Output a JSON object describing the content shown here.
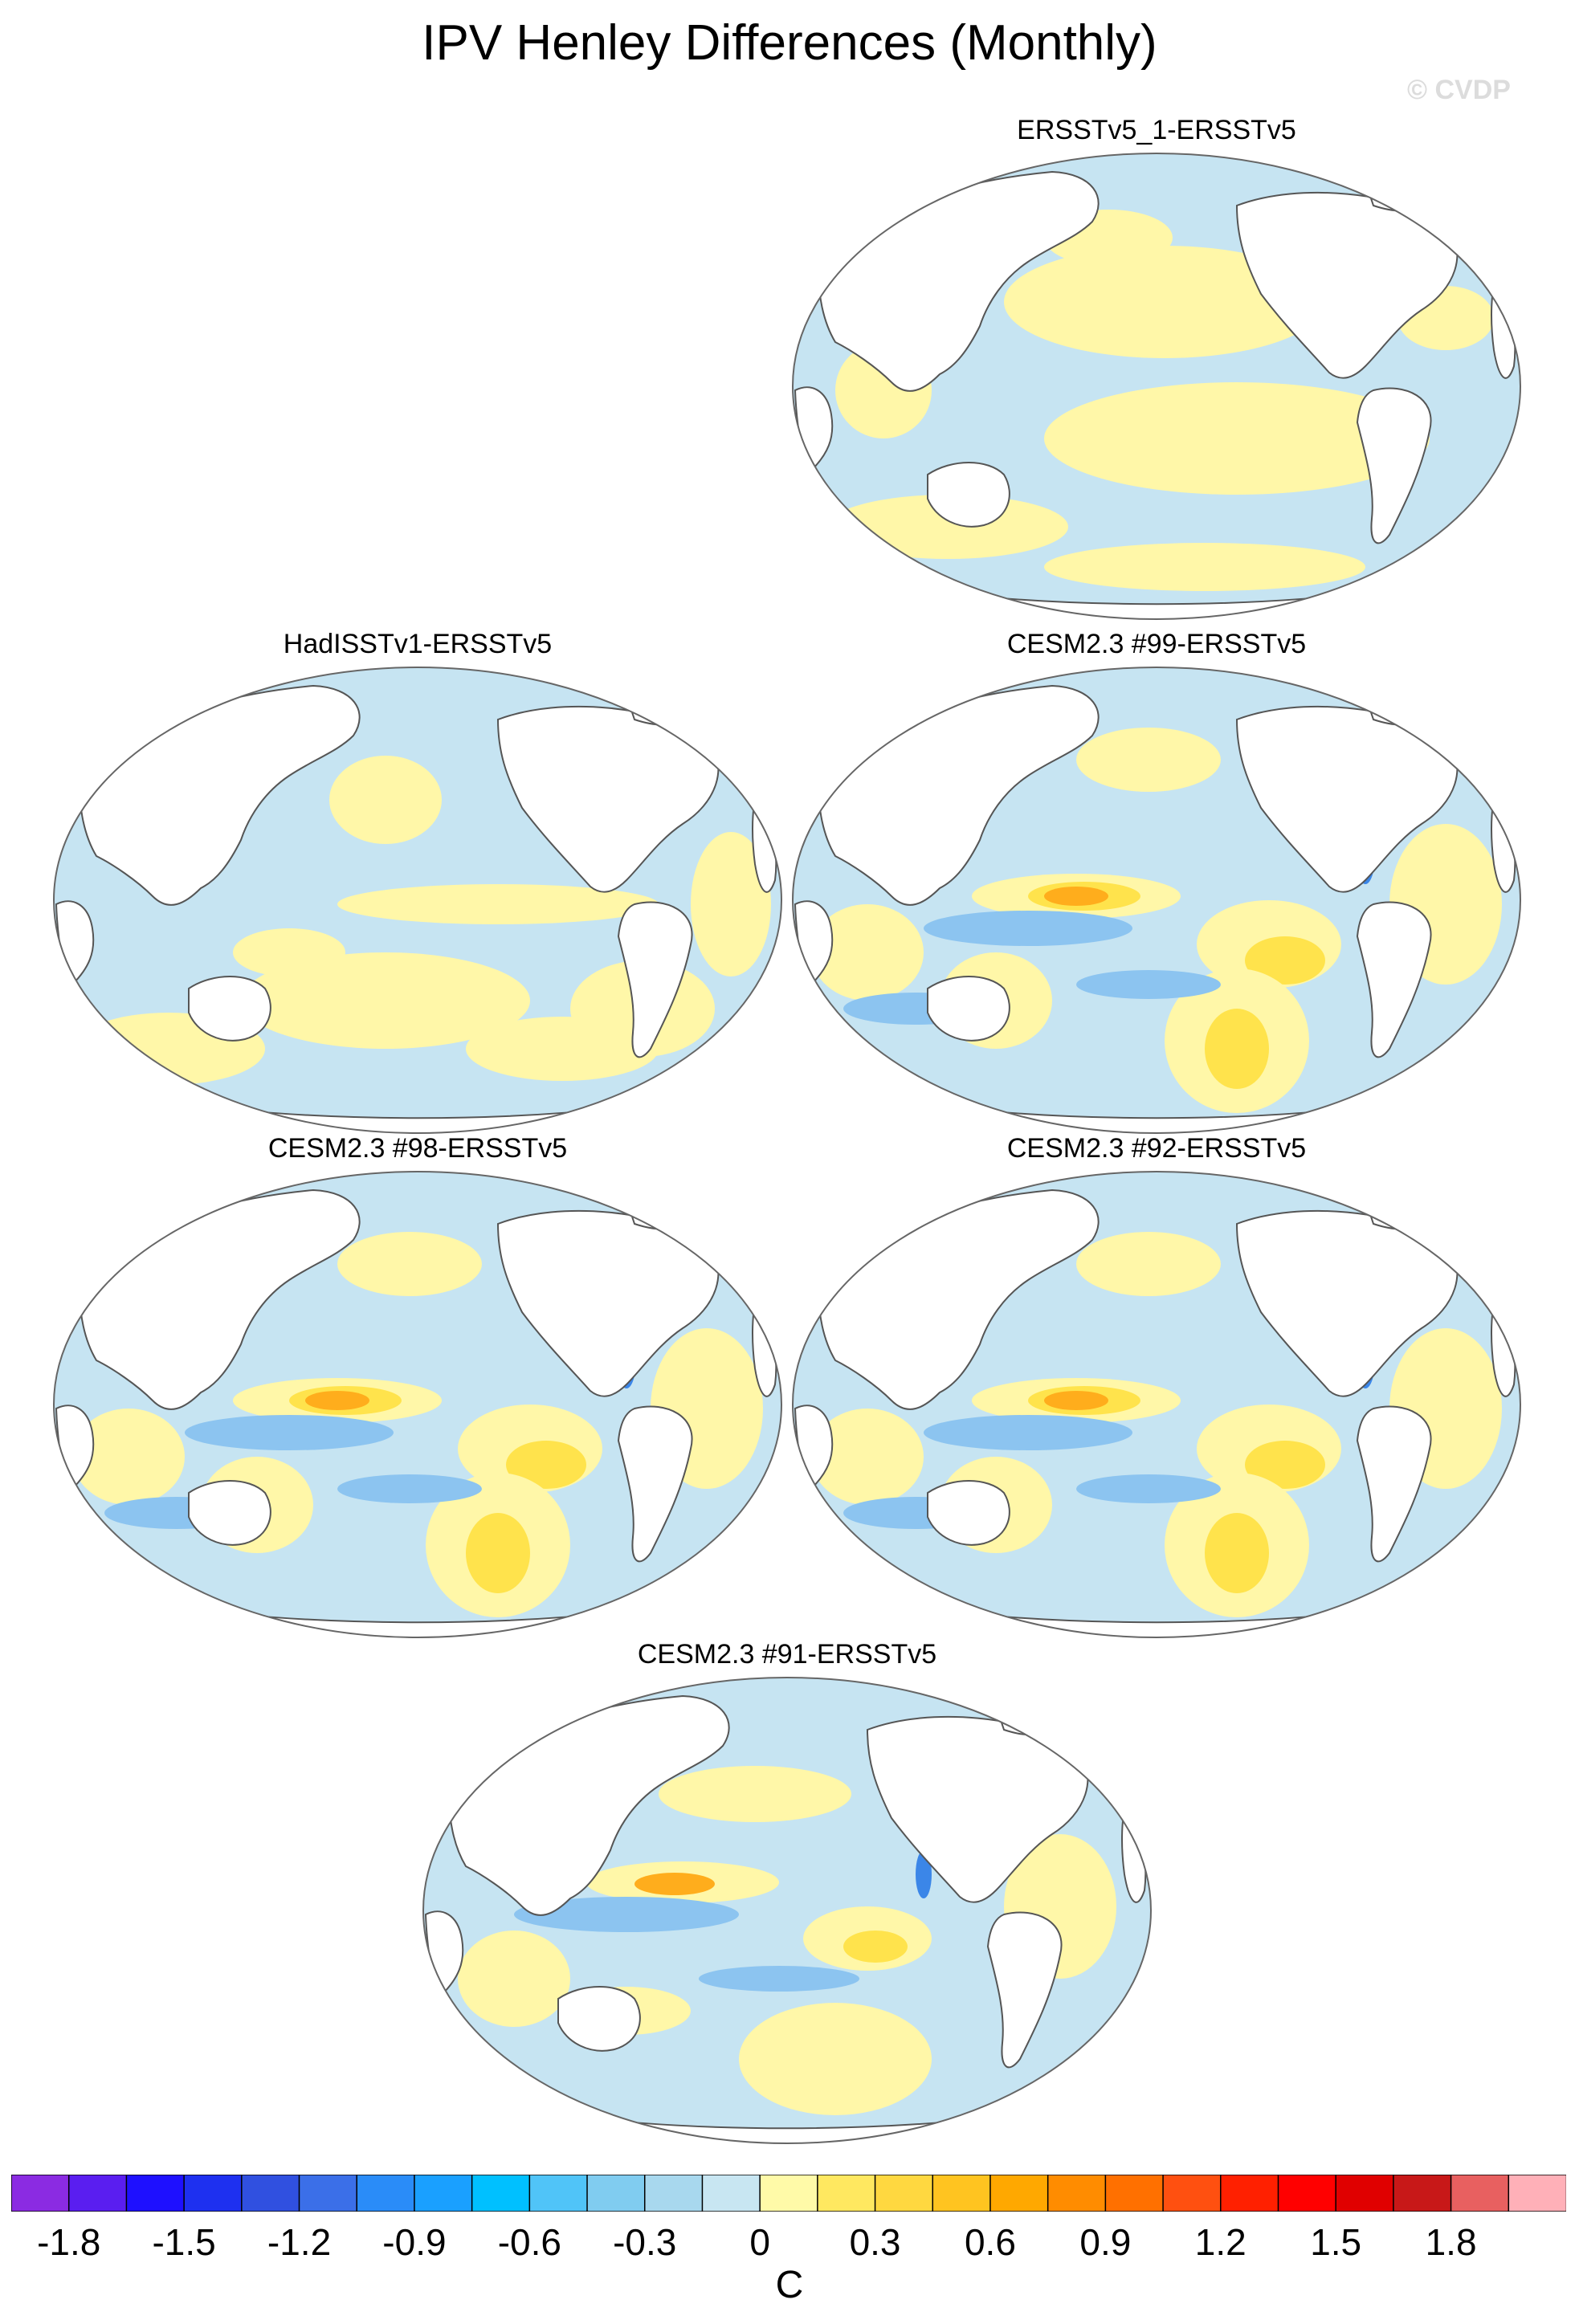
{
  "figure": {
    "title": "IPV Henley Differences (Monthly)",
    "watermark": "© CVDP"
  },
  "panels": [
    {
      "title": "ERSSTv5_1-ERSSTv5",
      "variant": "obs_small"
    },
    {
      "title": "HadISSTv1-ERSSTv5",
      "variant": "obs"
    },
    {
      "title": "CESM2.3 #99-ERSSTv5",
      "variant": "model"
    },
    {
      "title": "CESM2.3 #98-ERSSTv5",
      "variant": "model"
    },
    {
      "title": "CESM2.3 #92-ERSSTv5",
      "variant": "model"
    },
    {
      "title": "CESM2.3 #91-ERSSTv5",
      "variant": "model_weak"
    }
  ],
  "colorbar": {
    "units": "C",
    "colors": [
      "#8b2be2",
      "#5a1ef0",
      "#1e10ff",
      "#1e30f0",
      "#3050e0",
      "#3b6fe8",
      "#2a8cf8",
      "#1aa0ff",
      "#00c0ff",
      "#50c4f8",
      "#80ccf0",
      "#a8d8ee",
      "#c8e6f2",
      "#fffaa8",
      "#ffe860",
      "#ffd840",
      "#ffc420",
      "#ffa800",
      "#ff8c00",
      "#ff7000",
      "#ff5010",
      "#ff2000",
      "#ff0000",
      "#e00000",
      "#c81818",
      "#e86060",
      "#ffb0b8"
    ],
    "labels": [
      "-1.8",
      "-1.5",
      "-1.2",
      "-0.9",
      "-0.6",
      "-0.3",
      "0",
      "0.3",
      "0.6",
      "0.9",
      "1.2",
      "1.5",
      "1.8"
    ]
  }
}
